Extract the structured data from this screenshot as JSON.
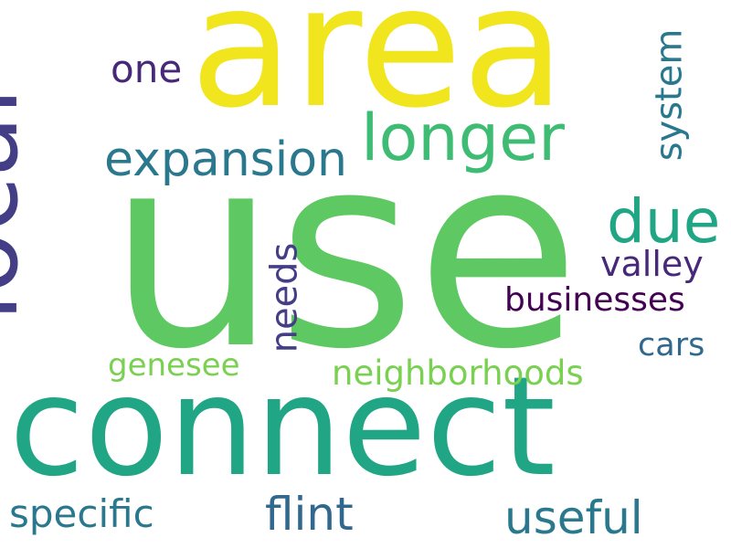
{
  "words": {
    "area": "area",
    "use": "use",
    "connect": "connect",
    "local": "local",
    "longer": "longer",
    "expansion": "expansion",
    "one": "one",
    "system": "system",
    "due": "due",
    "needs": "needs",
    "valley": "valley",
    "businesses": "businesses",
    "neighborhoods": "neighborhoods",
    "cars": "cars",
    "genesee": "genesee",
    "specific": "specific",
    "flint": "flint",
    "useful": "useful"
  },
  "colors": {
    "yellow": "#f1e51d",
    "green": "#5ec962",
    "light_green": "#7ad151",
    "teal": "#21a685",
    "teal_blue": "#2a788e",
    "blue": "#31688e",
    "navy": "#433e85",
    "purple": "#482878",
    "dark_purple": "#440154"
  }
}
